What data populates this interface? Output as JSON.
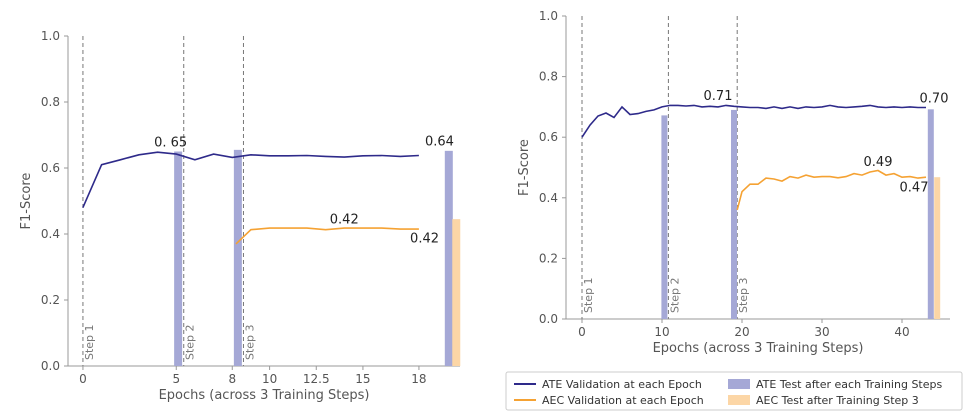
{
  "chart_data": [
    {
      "type": "line",
      "xlabel": "Epochs (across 3 Training Steps)",
      "ylabel": "F1-Score",
      "ylim": [
        0.0,
        1.0
      ],
      "yticks": [
        "0.0",
        "0.2",
        "0.4",
        "0.6",
        "0.8",
        "1.0"
      ],
      "xticks": [
        {
          "pos": 0,
          "label": "0"
        },
        {
          "pos": 5,
          "label": "5"
        },
        {
          "pos": 8,
          "label": "8"
        },
        {
          "pos": 10,
          "label": "10"
        },
        {
          "pos": 12.5,
          "label": "12.5"
        },
        {
          "pos": 15,
          "label": "15"
        },
        {
          "pos": 18,
          "label": "18"
        }
      ],
      "xlim": [
        -0.8,
        20.2
      ],
      "step_lines": [
        {
          "x": 0,
          "label": "Step 1"
        },
        {
          "x": 5.4,
          "label": "Step 2"
        },
        {
          "x": 8.6,
          "label": "Step 3"
        }
      ],
      "series": [
        {
          "name": "ATE Validation at each Epoch",
          "color": "#2e2a8a",
          "x": [
            0,
            1,
            2,
            3,
            4,
            5,
            6,
            7,
            8,
            9,
            10,
            11,
            12,
            13,
            14,
            15,
            16,
            17,
            18
          ],
          "y": [
            0.48,
            0.61,
            0.625,
            0.64,
            0.648,
            0.642,
            0.625,
            0.642,
            0.632,
            0.64,
            0.637,
            0.637,
            0.638,
            0.635,
            0.633,
            0.637,
            0.638,
            0.635,
            0.638
          ]
        },
        {
          "name": "AEC Validation at each Epoch",
          "color": "#f5a233",
          "x": [
            8.2,
            9,
            10,
            11,
            12,
            13,
            14,
            15,
            16,
            17,
            18
          ],
          "y": [
            0.37,
            0.413,
            0.418,
            0.418,
            0.418,
            0.413,
            0.418,
            0.418,
            0.418,
            0.415,
            0.415
          ]
        }
      ],
      "bars": [
        {
          "series": "ATE Test after each Training Steps",
          "x": 5.1,
          "value": 0.65,
          "color": "#a5a8d6"
        },
        {
          "series": "ATE Test after each Training Steps",
          "x": 8.3,
          "value": 0.655,
          "color": "#a5a8d6"
        },
        {
          "series": "ATE Test after each Training Steps",
          "x": 19.6,
          "value": 0.652,
          "color": "#a5a8d6"
        },
        {
          "series": "AEC Test after Training Step 3",
          "x": 20.0,
          "value": 0.445,
          "color": "#fcd6a6"
        }
      ],
      "annotations": [
        {
          "text": "0. 65",
          "x": 4.7,
          "y": 0.665
        },
        {
          "text": "0.64",
          "x": 19.1,
          "y": 0.668
        },
        {
          "text": "0.42",
          "x": 14.0,
          "y": 0.432
        },
        {
          "text": "0.42",
          "x": 18.3,
          "y": 0.375
        }
      ]
    },
    {
      "type": "line",
      "xlabel": "Epochs (across 3 Training Steps)",
      "ylabel": "F1-Score",
      "ylim": [
        0.0,
        1.0
      ],
      "yticks": [
        "0.0",
        "0.2",
        "0.4",
        "0.6",
        "0.8",
        "1.0"
      ],
      "xticks": [
        {
          "pos": 0,
          "label": "0"
        },
        {
          "pos": 10,
          "label": "10"
        },
        {
          "pos": 20,
          "label": "20"
        },
        {
          "pos": 30,
          "label": "30"
        },
        {
          "pos": 40,
          "label": "40"
        }
      ],
      "xlim": [
        -2,
        46
      ],
      "step_lines": [
        {
          "x": 0,
          "label": "Step 1"
        },
        {
          "x": 10.8,
          "label": "Step 2"
        },
        {
          "x": 19.4,
          "label": "Step 3"
        }
      ],
      "series": [
        {
          "name": "ATE Validation at each Epoch",
          "color": "#2e2a8a",
          "x": [
            0,
            1,
            2,
            3,
            4,
            5,
            6,
            7,
            8,
            9,
            10,
            11,
            12,
            13,
            14,
            15,
            16,
            17,
            18,
            19,
            20,
            21,
            22,
            23,
            24,
            25,
            26,
            27,
            28,
            29,
            30,
            31,
            32,
            33,
            34,
            35,
            36,
            37,
            38,
            39,
            40,
            41,
            42,
            43
          ],
          "y": [
            0.6,
            0.64,
            0.67,
            0.68,
            0.665,
            0.7,
            0.675,
            0.678,
            0.685,
            0.69,
            0.7,
            0.705,
            0.705,
            0.703,
            0.705,
            0.7,
            0.702,
            0.7,
            0.705,
            0.702,
            0.7,
            0.698,
            0.698,
            0.695,
            0.7,
            0.695,
            0.7,
            0.695,
            0.7,
            0.698,
            0.7,
            0.705,
            0.7,
            0.698,
            0.7,
            0.702,
            0.705,
            0.7,
            0.698,
            0.7,
            0.698,
            0.7,
            0.698,
            0.698
          ]
        },
        {
          "name": "AEC Validation at each Epoch",
          "color": "#f5a233",
          "x": [
            19.4,
            20,
            21,
            22,
            23,
            24,
            25,
            26,
            27,
            28,
            29,
            30,
            31,
            32,
            33,
            34,
            35,
            36,
            37,
            38,
            39,
            40,
            41,
            42,
            43
          ],
          "y": [
            0.36,
            0.42,
            0.445,
            0.445,
            0.465,
            0.462,
            0.455,
            0.47,
            0.465,
            0.475,
            0.468,
            0.47,
            0.47,
            0.466,
            0.47,
            0.48,
            0.475,
            0.485,
            0.49,
            0.475,
            0.48,
            0.468,
            0.47,
            0.465,
            0.468
          ]
        }
      ],
      "bars": [
        {
          "series": "ATE Test after each Training Steps",
          "x": 10.3,
          "value": 0.672,
          "color": "#a5a8d6"
        },
        {
          "series": "ATE Test after each Training Steps",
          "x": 19.0,
          "value": 0.69,
          "color": "#a5a8d6"
        },
        {
          "series": "ATE Test after each Training Steps",
          "x": 43.6,
          "value": 0.692,
          "color": "#a5a8d6"
        },
        {
          "series": "AEC Test after Training Step 3",
          "x": 44.4,
          "value": 0.468,
          "color": "#fcd6a6"
        }
      ],
      "annotations": [
        {
          "text": "0.71",
          "x": 17.0,
          "y": 0.722
        },
        {
          "text": "0.70",
          "x": 44.0,
          "y": 0.715
        },
        {
          "text": "0.49",
          "x": 37.0,
          "y": 0.505
        },
        {
          "text": "0.47",
          "x": 41.5,
          "y": 0.42
        }
      ]
    }
  ],
  "legend": {
    "placement": "bottom-right",
    "entries": [
      {
        "label": "ATE Validation at each Epoch",
        "kind": "line",
        "color": "#2e2a8a"
      },
      {
        "label": "ATE Test after each Training Steps",
        "kind": "patch",
        "color": "#a5a8d6"
      },
      {
        "label": "AEC Validation at each Epoch",
        "kind": "line",
        "color": "#f5a233"
      },
      {
        "label": "AEC Test after Training Step 3",
        "kind": "patch",
        "color": "#fcd6a6"
      }
    ]
  }
}
